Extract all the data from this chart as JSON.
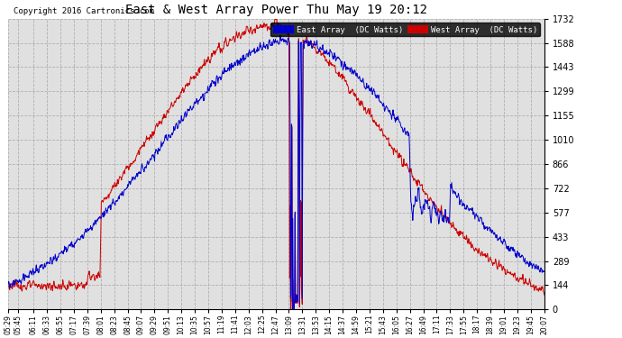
{
  "title": "East & West Array Power Thu May 19 20:12",
  "copyright": "Copyright 2016 Cartronics.com",
  "legend_east": "East Array  (DC Watts)",
  "legend_west": "West Array  (DC Watts)",
  "east_color": "#0000cc",
  "west_color": "#cc0000",
  "background_color": "#ffffff",
  "plot_bg": "#e0e0e0",
  "grid_color": "#aaaaaa",
  "ylim": [
    0.0,
    1731.9
  ],
  "yticks": [
    0.0,
    144.3,
    288.6,
    433.0,
    577.3,
    721.6,
    865.9,
    1010.3,
    1154.6,
    1298.9,
    1443.2,
    1587.6,
    1731.9
  ],
  "xtick_labels": [
    "05:29",
    "05:45",
    "06:11",
    "06:33",
    "06:55",
    "07:17",
    "07:39",
    "08:01",
    "08:23",
    "08:45",
    "09:07",
    "09:29",
    "09:51",
    "10:13",
    "10:35",
    "10:57",
    "11:19",
    "11:41",
    "12:03",
    "12:25",
    "12:47",
    "13:09",
    "13:31",
    "13:53",
    "14:15",
    "14:37",
    "14:59",
    "15:21",
    "15:43",
    "16:05",
    "16:27",
    "16:49",
    "17:11",
    "17:33",
    "17:55",
    "18:17",
    "18:39",
    "19:01",
    "19:23",
    "19:45",
    "20:07"
  ]
}
